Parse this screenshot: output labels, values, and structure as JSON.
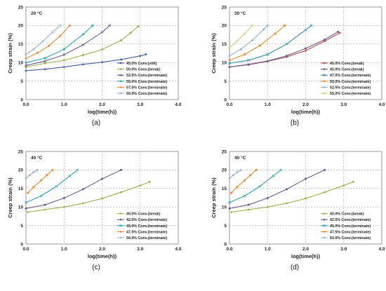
{
  "chart_data": [
    {
      "type": "line",
      "panel_label": "(a)",
      "temperature_label": "20 °C",
      "xlabel": "log(time(h))",
      "ylabel": "Creep strain (%)",
      "xlim": [
        0,
        4
      ],
      "ylim": [
        0,
        25
      ],
      "xticks": [
        "0.0",
        "1.0",
        "2.0",
        "3.0",
        "4.0"
      ],
      "yticks": [
        "0",
        "5",
        "10",
        "15",
        "20",
        "25"
      ],
      "grid": true,
      "legend_position": "bottom-right",
      "series": [
        {
          "name": "45.0% Conv.(still)",
          "color": "#3f5f9e",
          "x": [
            0,
            0.5,
            1.0,
            1.5,
            2.0,
            2.5,
            3.0,
            3.15
          ],
          "y": [
            7.8,
            8.2,
            8.8,
            9.5,
            10.1,
            10.8,
            11.8,
            12.2
          ]
        },
        {
          "name": "50.0% Conv.(break)",
          "color": "#9cb44c",
          "x": [
            0,
            0.5,
            1.0,
            1.5,
            2.0,
            2.5,
            2.75,
            2.95
          ],
          "y": [
            8.8,
            9.8,
            10.6,
            12.0,
            13.5,
            16.0,
            18.0,
            19.8
          ]
        },
        {
          "name": "52.5% Conv.(terminate)",
          "color": "#6e5a94",
          "x": [
            0,
            0.5,
            1.0,
            1.5,
            2.0,
            2.2
          ],
          "y": [
            9.2,
            10.4,
            12.1,
            14.8,
            18.2,
            20.0
          ]
        },
        {
          "name": "55.0% Conv.(terminate)",
          "color": "#2aa5b5",
          "x": [
            0,
            0.5,
            1.0,
            1.5,
            1.75
          ],
          "y": [
            10.0,
            11.2,
            13.6,
            17.6,
            20.0
          ]
        },
        {
          "name": "57.5% Conv.(terminate)",
          "color": "#f08a2c",
          "x": [
            0,
            0.3,
            0.6,
            0.9,
            1.15
          ],
          "y": [
            11.1,
            12.6,
            14.5,
            17.2,
            20.0
          ]
        },
        {
          "name": "60.0% Conv.(terminate)",
          "color": "#93b1d8",
          "x": [
            0,
            0.2,
            0.45,
            0.7,
            0.9
          ],
          "y": [
            12.2,
            13.6,
            15.8,
            18.2,
            20.0
          ]
        }
      ]
    },
    {
      "type": "line",
      "panel_label": "(b)",
      "temperature_label": "30 °C",
      "xlabel": "log(time(h))",
      "ylabel": "Creep strain (%)",
      "xlim": [
        0,
        4
      ],
      "ylim": [
        0,
        25
      ],
      "xticks": [
        "0.0",
        "1.0",
        "2.0",
        "3.0",
        "4.0"
      ],
      "yticks": [
        "0",
        "5",
        "10",
        "15",
        "20",
        "25"
      ],
      "grid": true,
      "legend_position": "bottom-right",
      "series": [
        {
          "name": "45.0% Conv.(break)",
          "color": "#c0504d",
          "x": [
            0,
            0.5,
            1.0,
            1.5,
            2.0,
            2.5,
            2.9
          ],
          "y": [
            8.8,
            9.4,
            10.3,
            11.5,
            13.2,
            15.8,
            18.0
          ]
        },
        {
          "name": "45.0% Conv.(break)",
          "color": "#6e5a94",
          "x": [
            0,
            0.5,
            1.0,
            1.5,
            2.0,
            2.5,
            2.85
          ],
          "y": [
            8.8,
            9.5,
            10.4,
            11.8,
            13.8,
            16.2,
            18.3
          ]
        },
        {
          "name": "47.5% Conv.(terminate)",
          "color": "#2a8fa8",
          "x": [
            0,
            0.5,
            1.0,
            1.5,
            2.0,
            2.15
          ],
          "y": [
            9.8,
            10.6,
            12.2,
            15.0,
            18.8,
            20.0
          ]
        },
        {
          "name": "50.0% Conv.(terminate)",
          "color": "#f08a2c",
          "x": [
            0,
            0.4,
            0.8,
            1.2,
            1.45
          ],
          "y": [
            10.6,
            12.2,
            14.6,
            17.8,
            20.0
          ]
        },
        {
          "name": "52.5% Conv.(terminate)",
          "color": "#93b1d8",
          "x": [
            0,
            0.3,
            0.6,
            0.9,
            1.0
          ],
          "y": [
            11.8,
            13.6,
            16.0,
            19.0,
            20.0
          ]
        },
        {
          "name": "55.0% Conv.(terminate)",
          "color": "#c8d46a",
          "x": [
            0,
            0.2,
            0.4,
            0.6
          ],
          "y": [
            14.0,
            15.8,
            17.8,
            20.0
          ]
        }
      ]
    },
    {
      "type": "line",
      "panel_label": "(c)",
      "temperature_label": "40 °C",
      "xlabel": "log(time(h))",
      "ylabel": "Creep strain (%)",
      "xlim": [
        0,
        4
      ],
      "ylim": [
        0,
        25
      ],
      "xticks": [
        "0.0",
        "1.0",
        "2.0",
        "3.0",
        "4.0"
      ],
      "yticks": [
        "0",
        "5",
        "10",
        "15",
        "20",
        "25"
      ],
      "grid": true,
      "legend_position": "bottom-right",
      "series": [
        {
          "name": "40.0% Conv.(break)",
          "color": "#9cb44c",
          "x": [
            0.05,
            0.5,
            1.0,
            1.5,
            2.0,
            2.5,
            3.0,
            3.25
          ],
          "y": [
            8.6,
            9.3,
            10.0,
            11.0,
            12.3,
            14.0,
            15.8,
            16.8
          ]
        },
        {
          "name": "42.5% Conv.(terminate)",
          "color": "#6e5a94",
          "x": [
            0,
            0.5,
            1.0,
            1.5,
            2.0,
            2.5
          ],
          "y": [
            9.6,
            10.6,
            12.4,
            14.8,
            17.6,
            20.0
          ]
        },
        {
          "name": "45.0% Conv.(terminate)",
          "color": "#2aa5b5",
          "x": [
            0,
            0.4,
            0.8,
            1.15,
            1.35
          ],
          "y": [
            11.2,
            13.0,
            15.6,
            18.4,
            20.0
          ]
        },
        {
          "name": "47.5% Conv.(terminate)",
          "color": "#f08a2c",
          "x": [
            0.05,
            0.2,
            0.4,
            0.55,
            0.7
          ],
          "y": [
            13.8,
            15.4,
            17.2,
            18.6,
            20.0
          ]
        },
        {
          "name": "50.0% Conv.(terminate)",
          "color": "#93b1d8",
          "x": [
            0,
            0.1,
            0.2,
            0.3
          ],
          "y": [
            17.8,
            18.6,
            19.4,
            20.0
          ]
        }
      ]
    },
    {
      "type": "line",
      "panel_label": "(d)",
      "temperature_label": "40 °C",
      "xlabel": "log(time(h))",
      "ylabel": "Creep strain (%)",
      "xlim": [
        0,
        4
      ],
      "ylim": [
        0,
        25
      ],
      "xticks": [
        "0.0",
        "1.0",
        "2.0",
        "3.0",
        "4.0"
      ],
      "yticks": [
        "0",
        "5",
        "10",
        "15",
        "20",
        "25"
      ],
      "grid": true,
      "legend_position": "bottom-right",
      "series": [
        {
          "name": "40.0% Conv.(break)",
          "color": "#9cb44c",
          "x": [
            0.05,
            0.5,
            1.0,
            1.5,
            2.0,
            2.5,
            3.0,
            3.25
          ],
          "y": [
            8.6,
            9.3,
            10.0,
            11.0,
            12.3,
            14.0,
            15.8,
            16.8
          ]
        },
        {
          "name": "42.5% Conv.(terminate)",
          "color": "#6e5a94",
          "x": [
            0,
            0.5,
            1.0,
            1.5,
            2.0,
            2.5
          ],
          "y": [
            9.6,
            10.6,
            12.4,
            14.8,
            17.6,
            20.0
          ]
        },
        {
          "name": "45.0% Conv.(terminate)",
          "color": "#2aa5b5",
          "x": [
            0,
            0.4,
            0.8,
            1.15,
            1.35
          ],
          "y": [
            11.2,
            13.0,
            15.6,
            18.4,
            20.0
          ]
        },
        {
          "name": "47.5% Conv.(terminate)",
          "color": "#f08a2c",
          "x": [
            0.05,
            0.2,
            0.4,
            0.55,
            0.7
          ],
          "y": [
            13.8,
            15.4,
            17.2,
            18.6,
            20.0
          ]
        },
        {
          "name": "50.0% Conv.(terminate)",
          "color": "#93b1d8",
          "x": [
            0,
            0.1,
            0.2,
            0.3
          ],
          "y": [
            17.8,
            18.6,
            19.4,
            20.0
          ]
        }
      ]
    }
  ]
}
